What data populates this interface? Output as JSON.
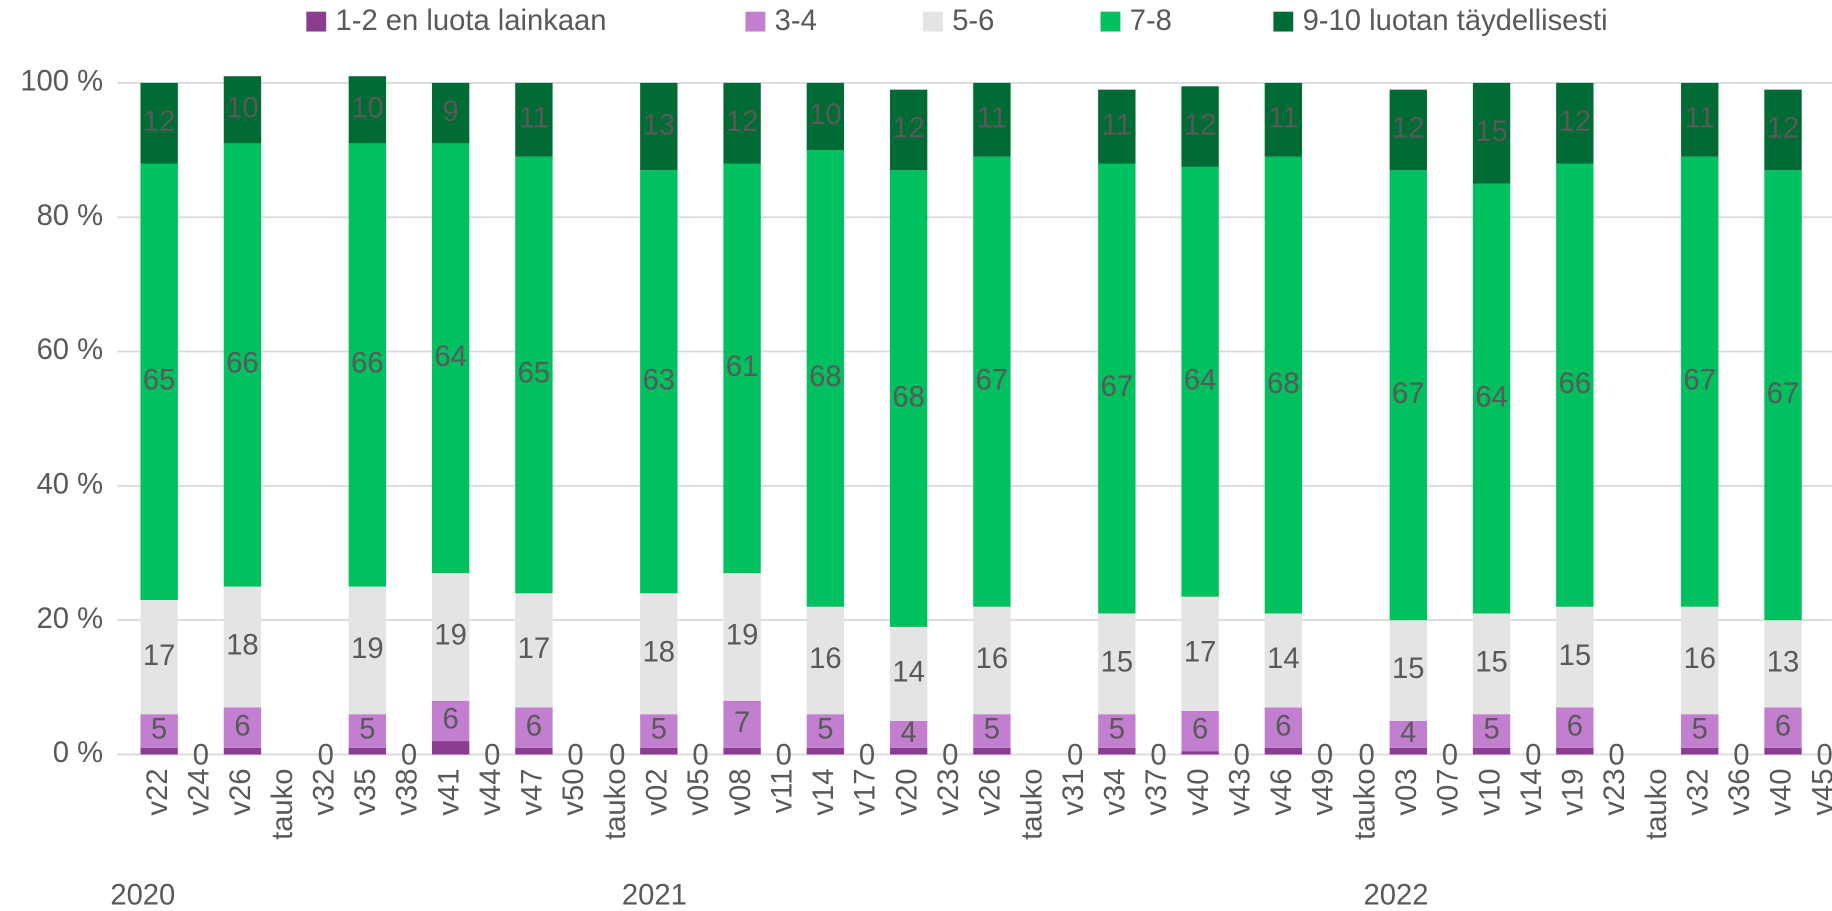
{
  "chart_data": {
    "type": "stacked_bar",
    "categories": [
      "v22",
      "v24",
      "v26",
      "tauko",
      "v32",
      "v35",
      "v38",
      "v41",
      "v44",
      "v47",
      "v50",
      "tauko",
      "v02",
      "v05",
      "v08",
      "v11",
      "v14",
      "v17",
      "v20",
      "v23",
      "v26",
      "tauko",
      "v31",
      "v34",
      "v37",
      "v40",
      "v43",
      "v46",
      "v49",
      "tauko",
      "v03",
      "v07",
      "v10",
      "v14",
      "v19",
      "v23",
      "tauko",
      "v32",
      "v36",
      "v40",
      "v45"
    ],
    "years": [
      "2020",
      "2021",
      "2022"
    ],
    "series": [
      {
        "name": "1-2 en luota lainkaan",
        "color": "#8b3d92",
        "values": [
          1,
          0,
          1,
          null,
          0,
          1,
          0,
          2,
          0,
          1,
          0,
          0,
          1,
          0,
          1,
          0,
          1,
          0,
          1,
          0,
          1,
          null,
          0,
          1,
          0,
          0.5,
          0,
          1,
          0,
          0,
          1,
          0,
          1,
          0,
          1,
          0,
          null,
          1,
          0,
          1,
          0
        ]
      },
      {
        "name": "3-4",
        "color": "#c27fcf",
        "values": [
          5,
          0,
          6,
          null,
          0,
          5,
          0,
          6,
          0,
          6,
          0,
          0,
          5,
          0,
          7,
          0,
          5,
          0,
          4,
          0,
          5,
          null,
          0,
          5,
          0,
          6,
          0,
          6,
          0,
          0,
          4,
          0,
          5,
          0,
          6,
          0,
          null,
          5,
          0,
          6,
          0
        ]
      },
      {
        "name": "5-6",
        "color": "#e4e4e4",
        "values": [
          17,
          0,
          18,
          null,
          0,
          19,
          0,
          19,
          0,
          17,
          0,
          0,
          18,
          0,
          19,
          0,
          16,
          0,
          14,
          0,
          16,
          null,
          0,
          15,
          0,
          17,
          0,
          14,
          0,
          0,
          15,
          0,
          15,
          0,
          15,
          0,
          null,
          16,
          0,
          13,
          0
        ]
      },
      {
        "name": "7-8",
        "color": "#00c060",
        "values": [
          65,
          0,
          66,
          null,
          0,
          66,
          0,
          64,
          0,
          65,
          0,
          0,
          63,
          0,
          61,
          0,
          68,
          0,
          68,
          0,
          67,
          null,
          0,
          67,
          0,
          64,
          0,
          68,
          0,
          0,
          67,
          0,
          64,
          0,
          66,
          0,
          null,
          67,
          0,
          67,
          0
        ]
      },
      {
        "name": "9-10 luotan täydellisesti",
        "color": "#006b35",
        "values": [
          12,
          0,
          10,
          null,
          0,
          10,
          0,
          9,
          0,
          11,
          0,
          0,
          13,
          0,
          12,
          0,
          10,
          0,
          12,
          0,
          11,
          null,
          0,
          11,
          0,
          12,
          0,
          11,
          0,
          0,
          12,
          0,
          15,
          0,
          12,
          0,
          null,
          11,
          0,
          12,
          0
        ]
      }
    ],
    "ylim": [
      0,
      100
    ],
    "yticks": [
      {
        "value": 0,
        "label": "0 %"
      },
      {
        "value": 20,
        "label": "20 %"
      },
      {
        "value": 40,
        "label": "40 %"
      },
      {
        "value": 60,
        "label": "60 %"
      },
      {
        "value": 80,
        "label": "80 %"
      },
      {
        "value": 100,
        "label": "100 %"
      }
    ],
    "grid": true
  }
}
